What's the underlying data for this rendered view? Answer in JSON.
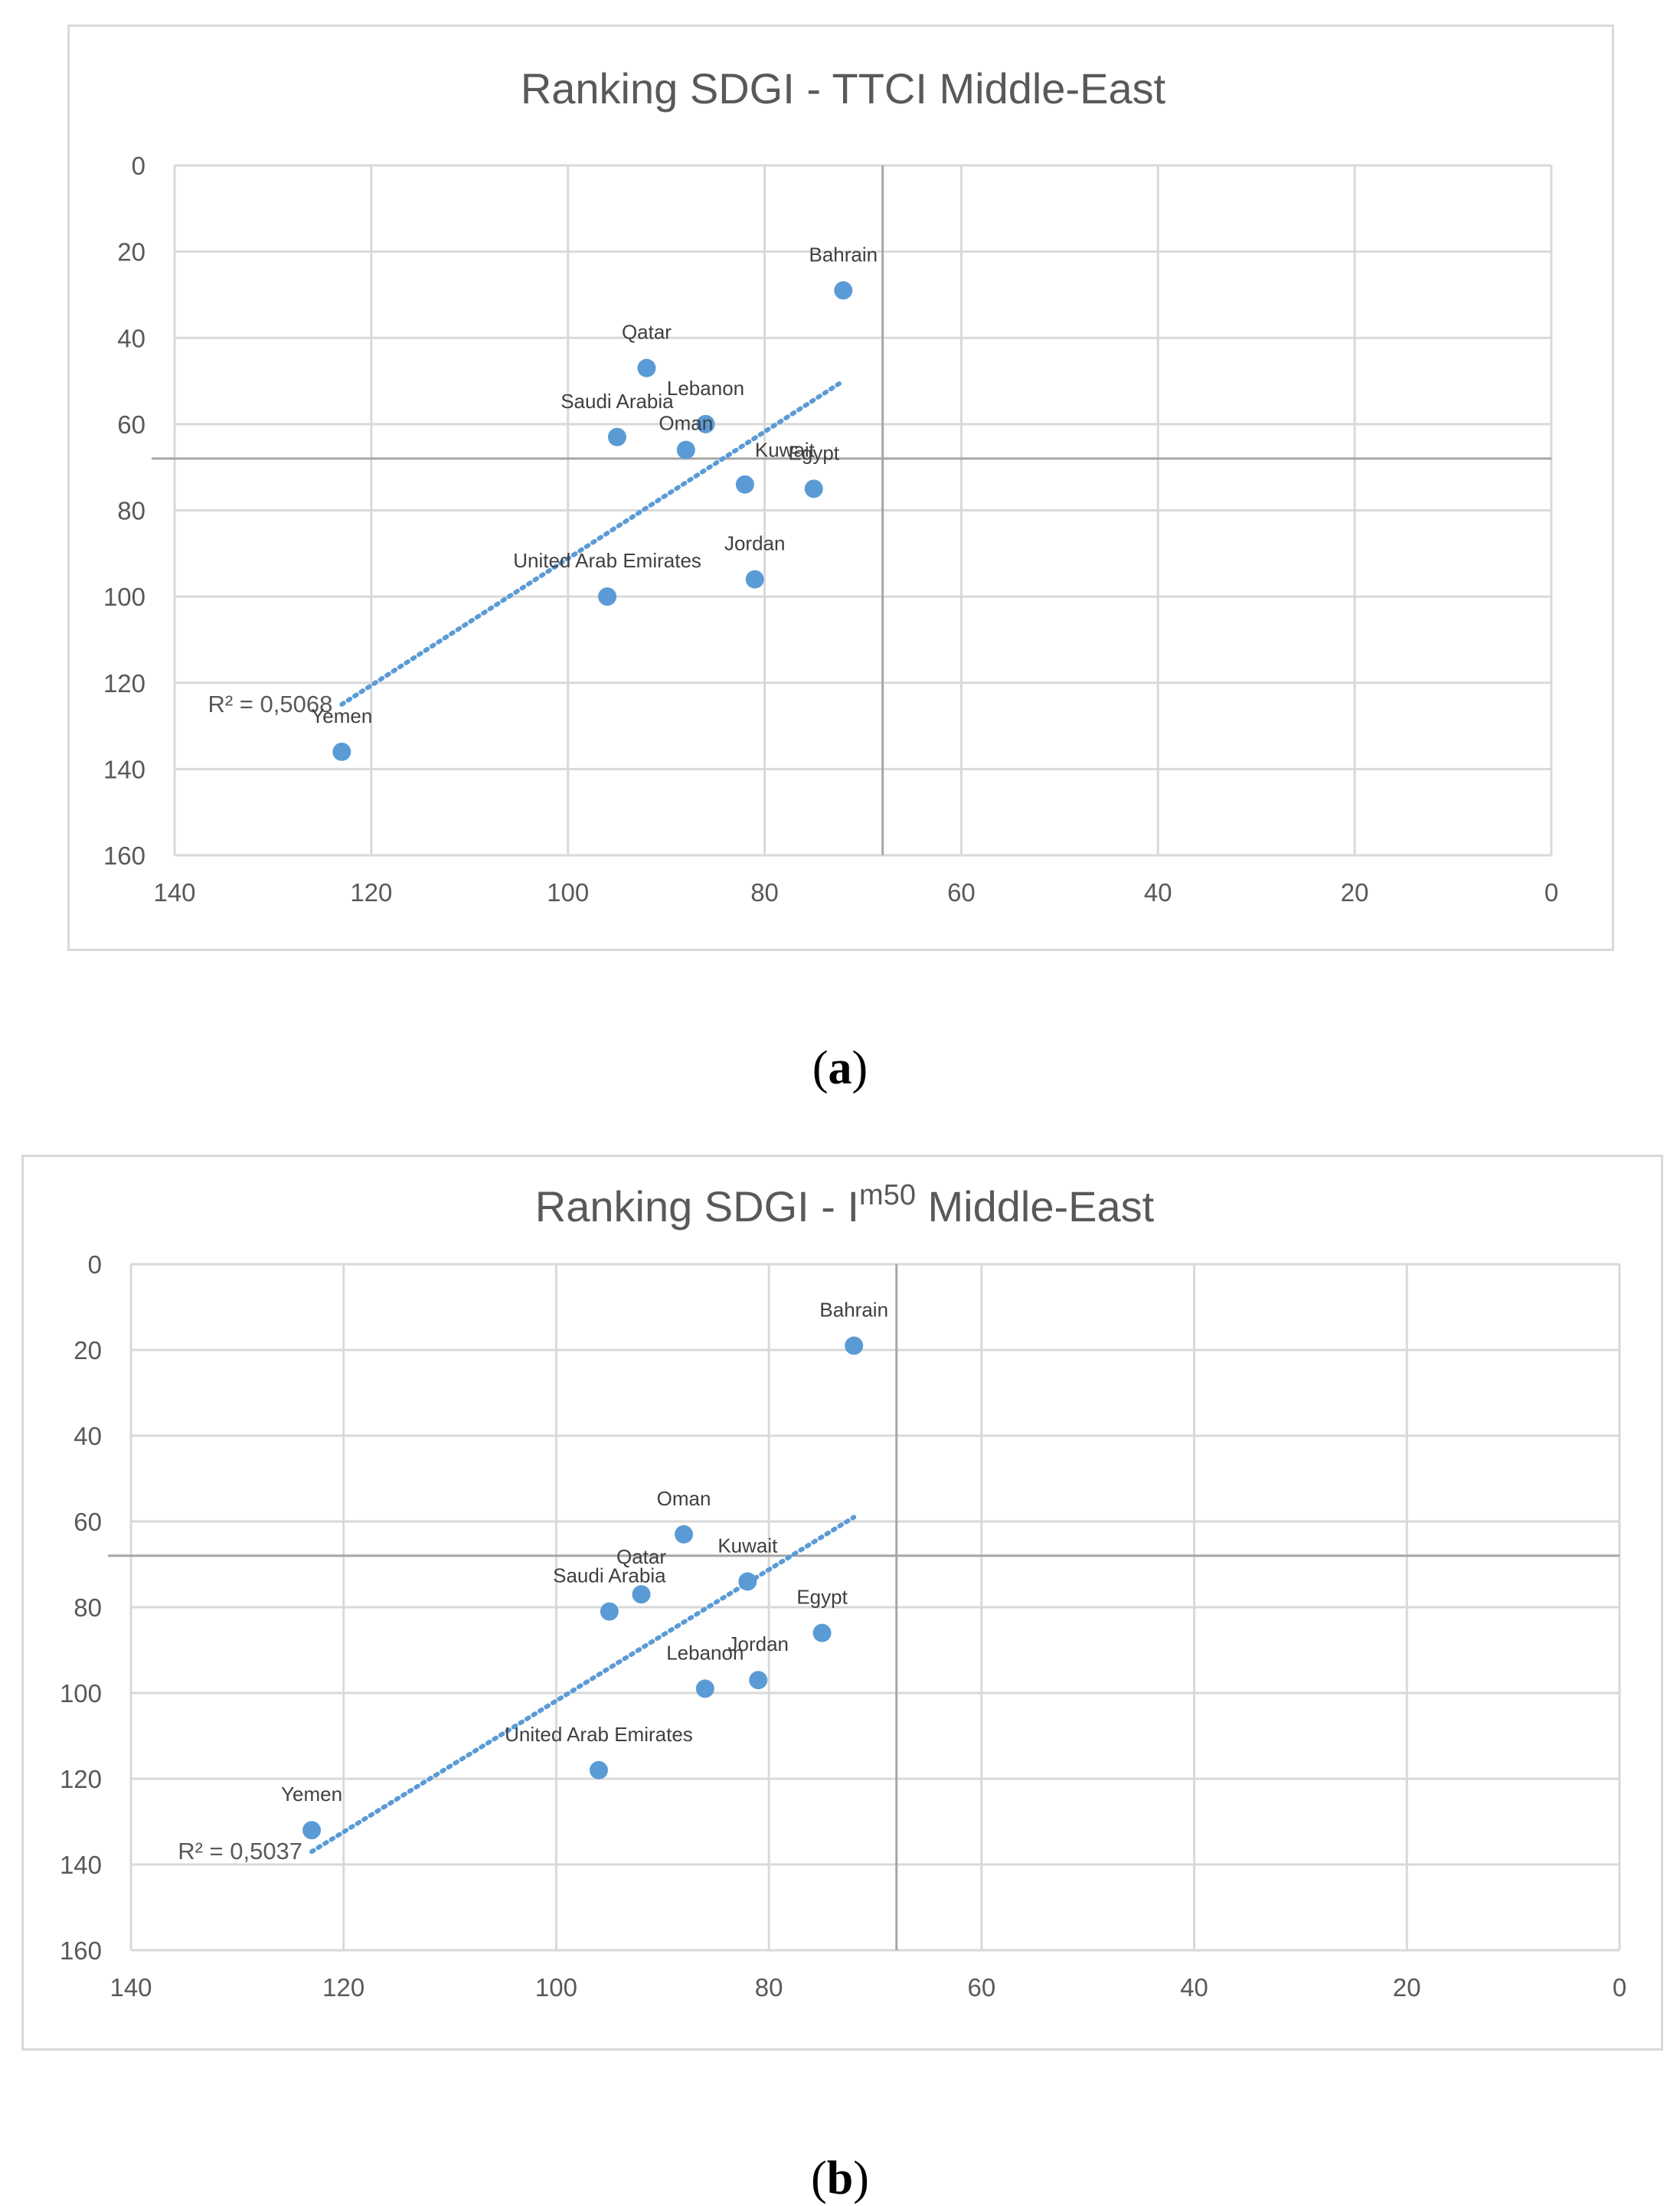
{
  "captions": {
    "a_letter": "a",
    "b_letter": "b"
  },
  "colors": {
    "marker": "#5b9bd5",
    "grid": "#d9d9d9",
    "crosshair": "#a6a6a6",
    "text": "#595959"
  },
  "chart_data": [
    {
      "type": "scatter",
      "title": "Ranking SDGI - TTCI Middle-East",
      "xlabel": "",
      "ylabel": "",
      "xlim": [
        140,
        0
      ],
      "ylim": [
        0,
        160
      ],
      "x_reversed": true,
      "y_reversed": true,
      "x_ticks": [
        140,
        120,
        100,
        80,
        60,
        40,
        20,
        0
      ],
      "y_ticks": [
        0,
        20,
        40,
        60,
        80,
        100,
        120,
        140,
        160
      ],
      "grid": true,
      "crosshair": {
        "x": 68,
        "y": 68
      },
      "points": [
        {
          "label": "Bahrain",
          "x": 72,
          "y": 29
        },
        {
          "label": "Qatar",
          "x": 92,
          "y": 47
        },
        {
          "label": "Lebanon",
          "x": 86,
          "y": 60
        },
        {
          "label": "Saudi Arabia",
          "x": 95,
          "y": 63
        },
        {
          "label": "Oman",
          "x": 88,
          "y": 66
        },
        {
          "label": "Kuwait",
          "x": 82,
          "y": 74
        },
        {
          "label": "Egypt",
          "x": 75,
          "y": 75
        },
        {
          "label": "Jordan",
          "x": 81,
          "y": 96
        },
        {
          "label": "United Arab Emirates",
          "x": 96,
          "y": 100
        },
        {
          "label": "Yemen",
          "x": 123,
          "y": 136
        }
      ],
      "trendline": {
        "x1": 123,
        "y1": 125,
        "x2": 72,
        "y2": 50,
        "r2_label": "R² = 0,5068"
      }
    },
    {
      "type": "scatter",
      "title_main": "Ranking SDGI - I",
      "title_sup": "m50",
      "title_tail": " Middle-East",
      "xlabel": "",
      "ylabel": "",
      "xlim": [
        140,
        0
      ],
      "ylim": [
        0,
        160
      ],
      "x_reversed": true,
      "y_reversed": true,
      "x_ticks": [
        140,
        120,
        100,
        80,
        60,
        40,
        20,
        0
      ],
      "y_ticks": [
        0,
        20,
        40,
        60,
        80,
        100,
        120,
        140,
        160
      ],
      "grid": true,
      "crosshair": {
        "x": 68,
        "y": 68
      },
      "points": [
        {
          "label": "Bahrain",
          "x": 72,
          "y": 19
        },
        {
          "label": "Oman",
          "x": 88,
          "y": 63
        },
        {
          "label": "Kuwait",
          "x": 82,
          "y": 74
        },
        {
          "label": "Qatar",
          "x": 92,
          "y": 77
        },
        {
          "label": "Saudi Arabia",
          "x": 95,
          "y": 81
        },
        {
          "label": "Egypt",
          "x": 75,
          "y": 86
        },
        {
          "label": "Jordan",
          "x": 81,
          "y": 97
        },
        {
          "label": "Lebanon",
          "x": 86,
          "y": 99
        },
        {
          "label": "United Arab Emirates",
          "x": 96,
          "y": 118
        },
        {
          "label": "Yemen",
          "x": 123,
          "y": 132
        }
      ],
      "trendline": {
        "x1": 123,
        "y1": 137,
        "x2": 72,
        "y2": 59,
        "r2_label": "R² = 0,5037"
      }
    }
  ]
}
